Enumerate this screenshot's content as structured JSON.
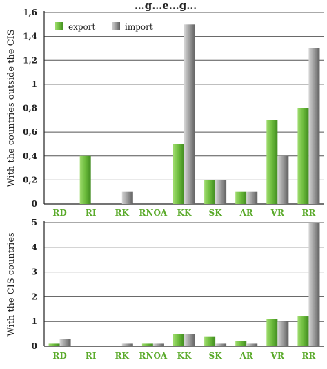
{
  "figure_title": "…g…e…g…",
  "colors": {
    "export": "#6cbb3c",
    "import": "#9a9a9a",
    "category_label": "#5aaa2a"
  },
  "chart_data": [
    {
      "type": "bar",
      "ylabel": "With the countries outside the CIS",
      "categories": [
        "RD",
        "RI",
        "RK",
        "RNOA",
        "KK",
        "SK",
        "AR",
        "VR",
        "RR"
      ],
      "ylim": [
        0,
        1.6
      ],
      "yticks": [
        "0",
        "0,2",
        "0,4",
        "0,6",
        "0,8",
        "1",
        "1,2",
        "1,4",
        "1,6"
      ],
      "grid": true,
      "legend_position": "top-left",
      "series": [
        {
          "name": "export",
          "values": [
            0,
            0.4,
            0,
            0,
            0.5,
            0.2,
            0.1,
            0.7,
            0.8
          ]
        },
        {
          "name": "import",
          "values": [
            0,
            0,
            0.1,
            0,
            1.5,
            0.2,
            0.1,
            0.4,
            1.3
          ]
        }
      ]
    },
    {
      "type": "bar",
      "ylabel": "With the CIS countries",
      "categories": [
        "RD",
        "RI",
        "RK",
        "RNOA",
        "KK",
        "SK",
        "AR",
        "VR",
        "RR"
      ],
      "ylim": [
        0,
        5
      ],
      "yticks": [
        "0",
        "1",
        "2",
        "3",
        "4",
        "5"
      ],
      "grid": true,
      "legend_position": "none",
      "series": [
        {
          "name": "export",
          "values": [
            0.1,
            0,
            0,
            0.1,
            0.5,
            0.4,
            0.2,
            1.1,
            1.2
          ]
        },
        {
          "name": "import",
          "values": [
            0.3,
            0,
            0.1,
            0.1,
            0.5,
            0.1,
            0.1,
            1.0,
            5.0
          ]
        }
      ]
    }
  ]
}
